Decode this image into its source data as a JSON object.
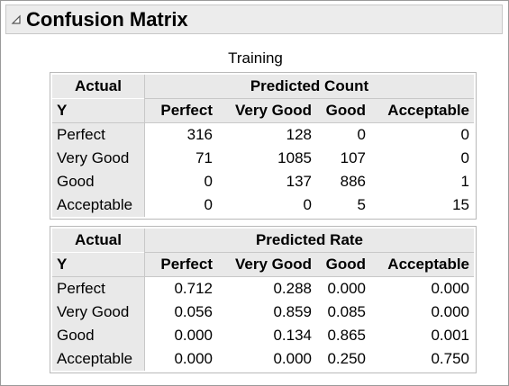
{
  "header": {
    "title": "Confusion Matrix"
  },
  "caption": "Training",
  "count_table": {
    "corner_top": "Actual",
    "corner_bottom": "Y",
    "group_label": "Predicted Count",
    "columns": [
      "Perfect",
      "Very Good",
      "Good",
      "Acceptable"
    ],
    "rows": [
      {
        "label": "Perfect",
        "values": [
          "316",
          "128",
          "0",
          "0"
        ]
      },
      {
        "label": "Very Good",
        "values": [
          "71",
          "1085",
          "107",
          "0"
        ]
      },
      {
        "label": "Good",
        "values": [
          "0",
          "137",
          "886",
          "1"
        ]
      },
      {
        "label": "Acceptable",
        "values": [
          "0",
          "0",
          "5",
          "15"
        ]
      }
    ]
  },
  "rate_table": {
    "corner_top": "Actual",
    "corner_bottom": "Y",
    "group_label": "Predicted Rate",
    "columns": [
      "Perfect",
      "Very Good",
      "Good",
      "Acceptable"
    ],
    "rows": [
      {
        "label": "Perfect",
        "values": [
          "0.712",
          "0.288",
          "0.000",
          "0.000"
        ]
      },
      {
        "label": "Very Good",
        "values": [
          "0.056",
          "0.859",
          "0.085",
          "0.000"
        ]
      },
      {
        "label": "Good",
        "values": [
          "0.000",
          "0.134",
          "0.865",
          "0.001"
        ]
      },
      {
        "label": "Acceptable",
        "values": [
          "0.000",
          "0.000",
          "0.250",
          "0.750"
        ]
      }
    ]
  },
  "icons": {
    "disclosure": "disclosure-triangle-icon"
  }
}
